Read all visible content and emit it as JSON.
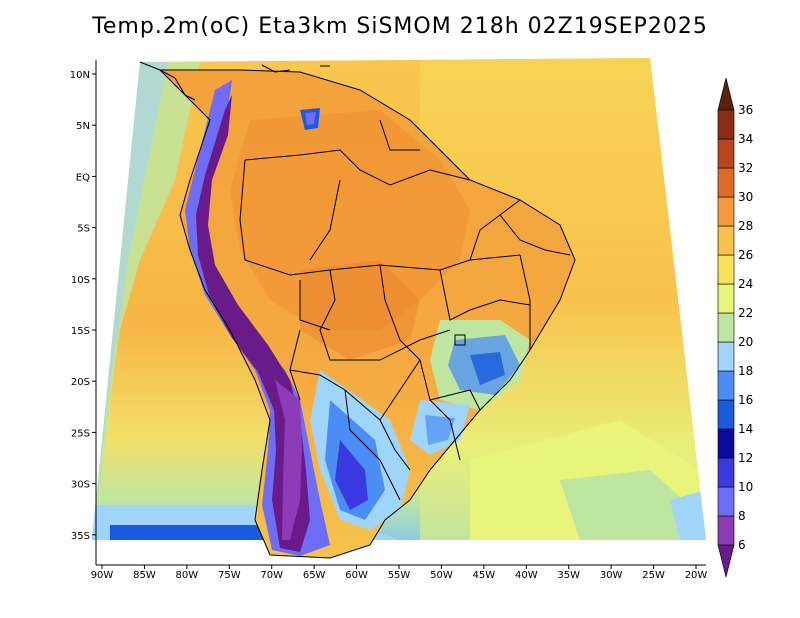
{
  "title": "Temp.2m(oC) Eta3km SiSMOM 218h 02Z19SEP2025",
  "map": {
    "variable": "2 m air temperature",
    "units": "oC",
    "lat_ticks": [
      "10N",
      "5N",
      "EQ",
      "5S",
      "10S",
      "15S",
      "20S",
      "25S",
      "30S",
      "35S"
    ],
    "lon_ticks": [
      "90W",
      "85W",
      "80W",
      "75W",
      "70W",
      "65W",
      "60W",
      "55W",
      "50W",
      "45W",
      "40W",
      "35W",
      "30W",
      "25W",
      "20W"
    ],
    "extent": {
      "lon": [
        -90,
        -20
      ],
      "lat": [
        -38,
        11
      ]
    }
  },
  "colorbar": {
    "labels": [
      "6",
      "8",
      "10",
      "12",
      "14",
      "16",
      "18",
      "20",
      "22",
      "24",
      "26",
      "28",
      "30",
      "32",
      "34",
      "36"
    ],
    "colors": [
      "#6a1b8a",
      "#8e3bb8",
      "#6d6df5",
      "#3a3ae0",
      "#0a0a9e",
      "#1a5adf",
      "#4a8ef5",
      "#9fd4fb",
      "#bfe6a0",
      "#e8f57a",
      "#f7e25a",
      "#f9c14a",
      "#f39a3a",
      "#e06a28",
      "#b8451c",
      "#8a2e14",
      "#5e1f0e"
    ]
  }
}
